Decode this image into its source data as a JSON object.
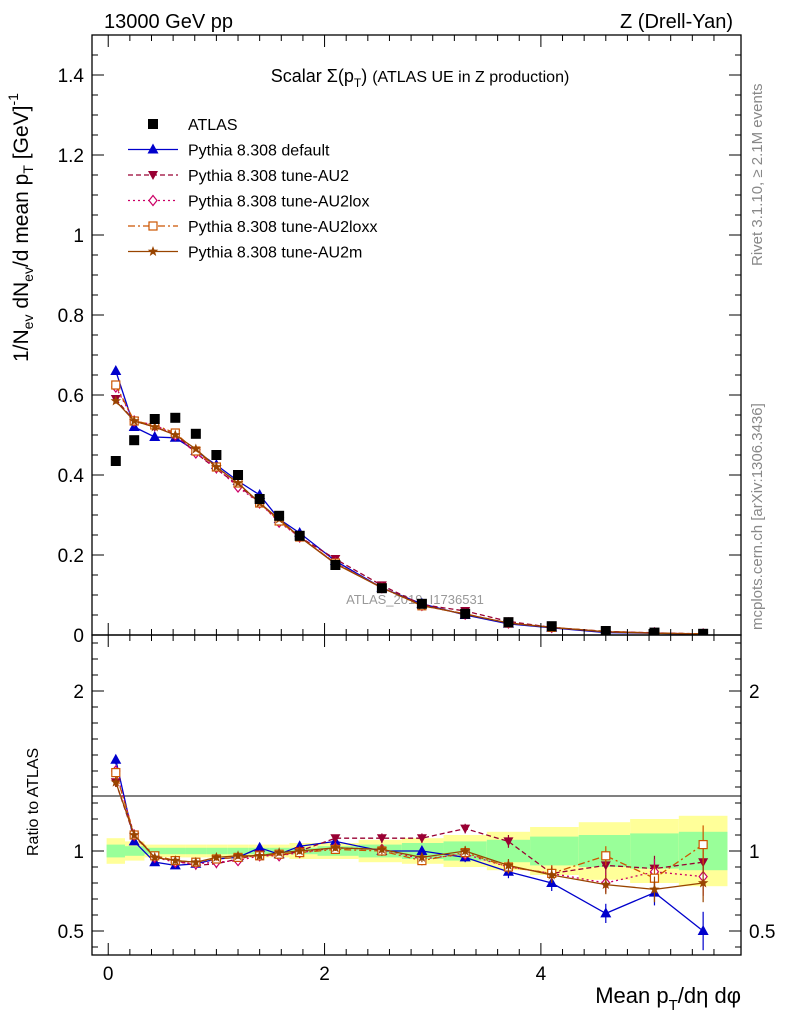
{
  "header": {
    "left": "13000 GeV pp",
    "right": "Z (Drell-Yan)"
  },
  "side_labels": {
    "rivet": "Rivet 3.1.10, ≥ 2.1M events",
    "mcplots": "mcplots.cern.ch [arXiv:1306.3436]"
  },
  "main_plot": {
    "title": "Scalar Σ(p_T) (ATLAS UE in Z production)",
    "ylabel": "1/N_ev dN_ev/d mean p_T [GeV]^-1",
    "watermark": "ATLAS_2019_I1736531",
    "ylim": [
      0,
      1.5
    ],
    "yticks": [
      "0",
      "0.2",
      "0.4",
      "0.6",
      "0.8",
      "1",
      "1.2",
      "1.4"
    ]
  },
  "ratio_plot": {
    "ylabel": "Ratio to ATLAS",
    "ylim": [
      0.35,
      2.35
    ],
    "yticks": [
      "0.5",
      "1",
      "2"
    ]
  },
  "xaxis": {
    "label": "Mean p_T/dη dφ",
    "xlim": [
      -0.15,
      5.85
    ],
    "ticks": [
      "0",
      "2",
      "4"
    ]
  },
  "legend": [
    {
      "label": "ATLAS",
      "marker": "square",
      "color": "#000000",
      "dash": "none"
    },
    {
      "label": "Pythia 8.308 default",
      "marker": "triangle-up",
      "color": "#0000cc",
      "dash": "solid"
    },
    {
      "label": "Pythia 8.308 tune-AU2",
      "marker": "triangle-down",
      "color": "#990033",
      "dash": "dashed"
    },
    {
      "label": "Pythia 8.308 tune-AU2lox",
      "marker": "diamond-open",
      "color": "#cc0066",
      "dash": "dotted"
    },
    {
      "label": "Pythia 8.308 tune-AU2loxx",
      "marker": "square-open",
      "color": "#cc5500",
      "dash": "dashdot"
    },
    {
      "label": "Pythia 8.308 tune-AU2m",
      "marker": "star",
      "color": "#994400",
      "dash": "solid"
    }
  ],
  "chart_data": {
    "type": "scatter",
    "x": [
      0.07,
      0.24,
      0.43,
      0.62,
      0.81,
      1.0,
      1.2,
      1.4,
      1.58,
      1.77,
      2.1,
      2.53,
      2.9,
      3.3,
      3.7,
      4.1,
      4.6,
      5.05,
      5.5
    ],
    "atlas": [
      0.435,
      0.487,
      0.54,
      0.543,
      0.503,
      0.45,
      0.4,
      0.34,
      0.298,
      0.248,
      0.175,
      0.117,
      0.078,
      0.053,
      0.032,
      0.022,
      0.01,
      0.006,
      0.003
    ],
    "band_inner": [
      0.04,
      0.03,
      0.02,
      0.02,
      0.02,
      0.02,
      0.02,
      0.02,
      0.02,
      0.02,
      0.03,
      0.04,
      0.05,
      0.06,
      0.07,
      0.09,
      0.1,
      0.11,
      0.12
    ],
    "band_outer": [
      0.08,
      0.06,
      0.04,
      0.04,
      0.04,
      0.04,
      0.04,
      0.04,
      0.04,
      0.05,
      0.05,
      0.07,
      0.08,
      0.1,
      0.12,
      0.15,
      0.18,
      0.2,
      0.22
    ],
    "series": [
      {
        "name": "Pythia 8.308 default",
        "values": [
          0.66,
          0.52,
          0.495,
          0.493,
          0.46,
          0.425,
          0.385,
          0.35,
          0.29,
          0.255,
          0.185,
          0.118,
          0.078,
          0.05,
          0.028,
          0.018,
          0.006,
          0.0045,
          0.0015
        ],
        "ratio": [
          1.57,
          1.06,
          0.93,
          0.91,
          0.92,
          0.95,
          0.96,
          1.02,
          0.98,
          1.03,
          1.06,
          1.0,
          1.0,
          0.96,
          0.87,
          0.8,
          0.61,
          0.74,
          0.5
        ]
      },
      {
        "name": "Pythia 8.308 tune-AU2",
        "values": [
          0.59,
          0.535,
          0.52,
          0.502,
          0.455,
          0.415,
          0.375,
          0.33,
          0.285,
          0.245,
          0.19,
          0.124,
          0.076,
          0.06,
          0.034,
          0.019,
          0.009,
          0.0055,
          0.0028
        ],
        "ratio": [
          1.43,
          1.09,
          0.97,
          0.94,
          0.91,
          0.92,
          0.95,
          0.98,
          0.97,
          1.0,
          1.08,
          1.08,
          1.08,
          1.14,
          1.06,
          0.86,
          0.91,
          0.89,
          0.93
        ]
      },
      {
        "name": "Pythia 8.308 tune-AU2lox",
        "values": [
          0.62,
          0.535,
          0.525,
          0.5,
          0.455,
          0.418,
          0.37,
          0.33,
          0.282,
          0.245,
          0.18,
          0.118,
          0.074,
          0.052,
          0.03,
          0.019,
          0.008,
          0.0053,
          0.0025
        ],
        "ratio": [
          1.5,
          1.1,
          0.96,
          0.93,
          0.92,
          0.93,
          0.94,
          0.97,
          0.97,
          0.99,
          1.02,
          1.01,
          0.95,
          0.98,
          0.9,
          0.86,
          0.8,
          0.87,
          0.84
        ]
      },
      {
        "name": "Pythia 8.308 tune-AU2loxx",
        "values": [
          0.625,
          0.535,
          0.525,
          0.505,
          0.46,
          0.42,
          0.38,
          0.33,
          0.285,
          0.245,
          0.18,
          0.118,
          0.073,
          0.053,
          0.03,
          0.019,
          0.009,
          0.005,
          0.003
        ],
        "ratio": [
          1.49,
          1.1,
          0.97,
          0.94,
          0.93,
          0.95,
          0.96,
          0.97,
          0.98,
          0.99,
          1.01,
          1.0,
          0.94,
          0.99,
          0.9,
          0.86,
          0.97,
          0.83,
          1.04
        ]
      },
      {
        "name": "Pythia 8.308 tune-AU2m",
        "values": [
          0.585,
          0.535,
          0.52,
          0.5,
          0.465,
          0.42,
          0.38,
          0.33,
          0.29,
          0.245,
          0.178,
          0.118,
          0.074,
          0.052,
          0.03,
          0.019,
          0.008,
          0.0046,
          0.0024
        ],
        "ratio": [
          1.43,
          1.1,
          0.96,
          0.94,
          0.93,
          0.96,
          0.97,
          0.97,
          0.99,
          1.0,
          1.02,
          1.01,
          0.96,
          1.0,
          0.91,
          0.85,
          0.79,
          0.76,
          0.8
        ]
      }
    ],
    "ratio_err": [
      0.03,
      0.02,
      0.02,
      0.02,
      0.02,
      0.02,
      0.02,
      0.02,
      0.02,
      0.02,
      0.02,
      0.03,
      0.03,
      0.03,
      0.04,
      0.05,
      0.06,
      0.08,
      0.12
    ]
  }
}
